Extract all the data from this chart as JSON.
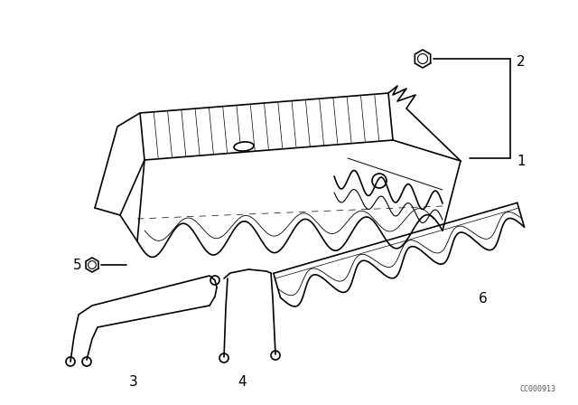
{
  "background_color": "#ffffff",
  "line_color": "#000000",
  "fig_width": 6.4,
  "fig_height": 4.48,
  "dpi": 100,
  "watermark": "CC000913"
}
